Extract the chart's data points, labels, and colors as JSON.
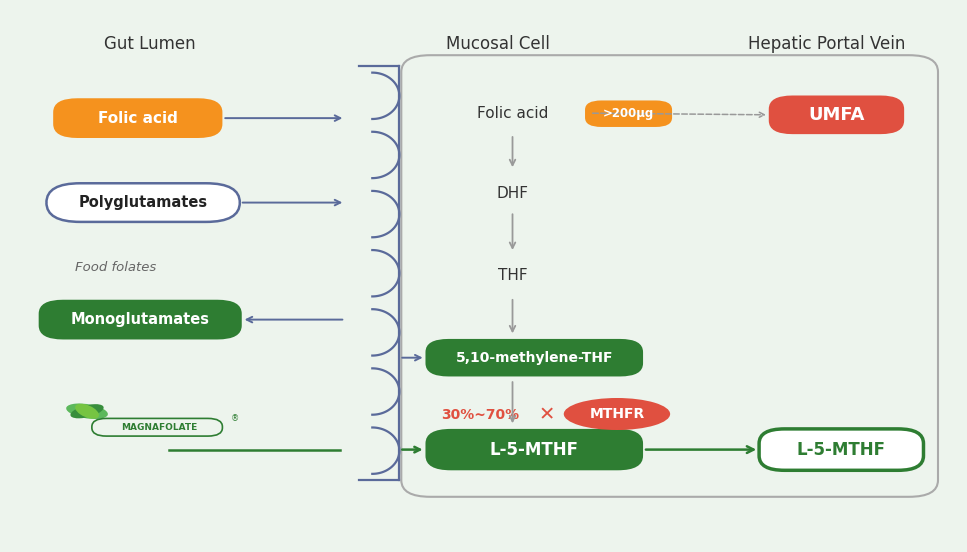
{
  "bg_color": "#edf4ed",
  "title_gut": "Gut Lumen",
  "title_mucosal": "Mucosal Cell",
  "title_hepatic": "Hepatic Portal Vein",
  "folic_acid_box": {
    "label": "Folic acid",
    "color": "#F5921E",
    "text_color": "#ffffff"
  },
  "polyglut_box": {
    "label": "Polyglutamates",
    "color": "#ffffff",
    "border_color": "#5a6a9a",
    "text_color": "#222222"
  },
  "food_folates": "Food folates",
  "monoglut_box": {
    "label": "Monoglutamates",
    "color": "#2e7d32",
    "text_color": "#ffffff"
  },
  "methylene_box": {
    "label": "5,10-methylene-THF",
    "color": "#2e7d32",
    "text_color": "#ffffff"
  },
  "l5mthf_box": {
    "label": "L-5-MTHF",
    "color": "#2e7d32",
    "text_color": "#ffffff"
  },
  "l5mthf_right_box": {
    "label": "L-5-MTHF",
    "color": "#ffffff",
    "border_color": "#2e7d32",
    "text_color": "#2e7d32"
  },
  "umfa_box": {
    "label": "UMFA",
    "color": "#e05040",
    "text_color": "#ffffff"
  },
  "mthfr_oval": {
    "label": "MTHFR",
    "color": "#e05040",
    "text_color": "#ffffff"
  },
  "dose_tag": {
    "label": ">200μg",
    "color": "#F5921E",
    "text_color": "#ffffff"
  },
  "block_label": {
    "label": "30%~70%",
    "color": "#e05040"
  },
  "mucosal_arrow_color": "#5a6a9a",
  "flow_arrow_color": "#999999",
  "green_arrow_color": "#2e7d32",
  "wall_color": "#5a6a9a",
  "outer_box_color": "#aaaaaa"
}
